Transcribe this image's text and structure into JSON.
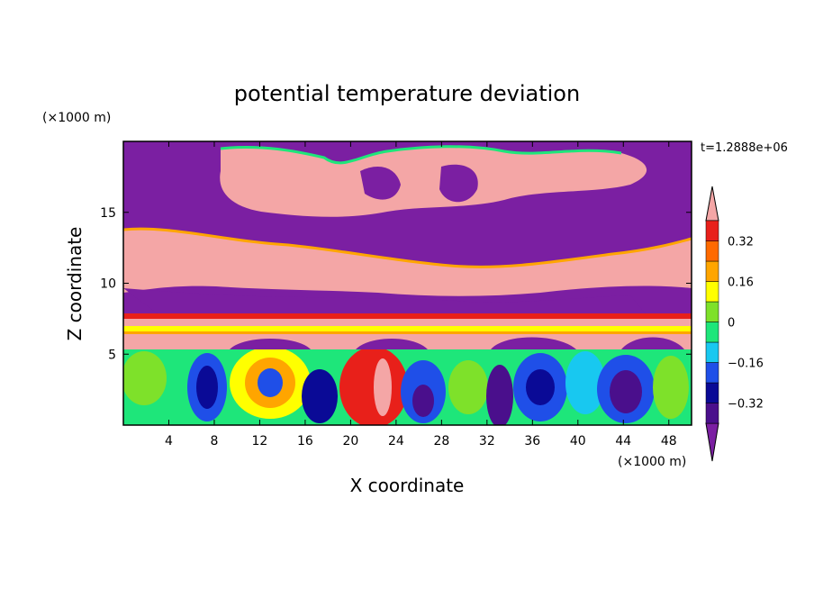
{
  "chart_data": {
    "type": "heatmap",
    "title": "potential temperature deviation",
    "xlabel": "X coordinate",
    "ylabel": "Z coordinate",
    "x_unit": "(×1000 m)",
    "y_unit": "(×1000 m)",
    "time_label": "t=1.2888e+06",
    "xlim": [
      0,
      50
    ],
    "ylim": [
      0,
      20
    ],
    "x_ticks": [
      4,
      8,
      12,
      16,
      20,
      24,
      28,
      32,
      36,
      40,
      44,
      48
    ],
    "y_ticks": [
      5,
      10,
      15
    ],
    "colorbar": {
      "levels": [
        -0.4,
        -0.32,
        -0.24,
        -0.16,
        -0.08,
        0,
        0.08,
        0.16,
        0.24,
        0.32,
        0.4
      ],
      "labeled_ticks": [
        0.32,
        0.16,
        0,
        -0.16,
        -0.32
      ],
      "tick_labels": [
        "0.32",
        "0.16",
        "0",
        "−0.16",
        "−0.32"
      ],
      "under_color": "#7b1fa2",
      "over_color": "#f4a6a6",
      "band_colors": [
        "#4a0f8c",
        "#0a0a96",
        "#1f4fe8",
        "#18c8f0",
        "#1ee67a",
        "#7ee12a",
        "#ffff00",
        "#ffa500",
        "#ff6a00",
        "#e8201a"
      ]
    },
    "field_description_colors": {
      "background_upper": "#7b1fa2",
      "warm_layer": "#f4a6a6"
    }
  }
}
